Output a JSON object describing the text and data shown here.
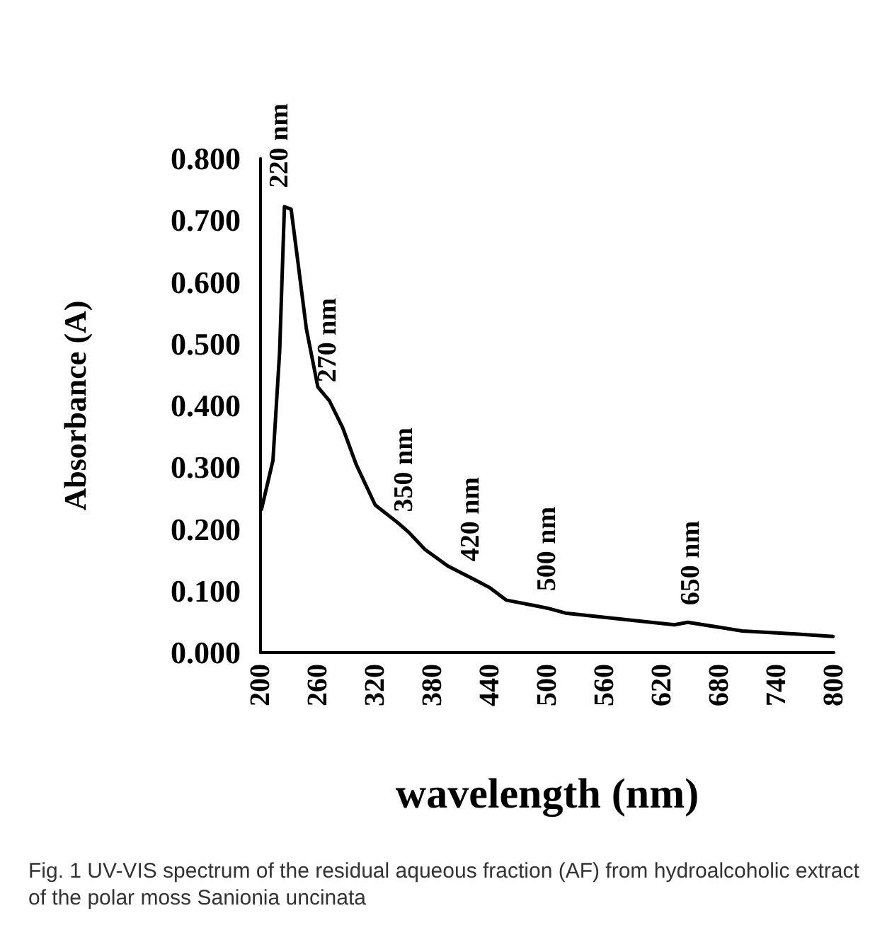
{
  "chart_data": {
    "type": "line",
    "xlabel": "wavelength (nm)",
    "ylabel": "Absorbance (A)",
    "x": [
      201,
      213,
      220,
      225,
      232,
      239,
      248,
      260,
      272,
      286,
      300,
      320,
      343,
      355,
      372,
      396,
      424,
      440,
      457,
      500,
      519,
      560,
      633,
      647,
      704,
      760,
      799
    ],
    "series": [
      {
        "color": "#000000",
        "values": [
          0.232,
          0.311,
          0.487,
          0.722,
          0.718,
          0.634,
          0.524,
          0.43,
          0.408,
          0.364,
          0.305,
          0.239,
          0.211,
          0.195,
          0.167,
          0.14,
          0.118,
          0.105,
          0.085,
          0.072,
          0.064,
          0.057,
          0.045,
          0.049,
          0.035,
          0.03,
          0.026
        ]
      }
    ],
    "xlim": [
      200,
      800
    ],
    "xticks": [
      200,
      260,
      320,
      380,
      440,
      500,
      560,
      620,
      680,
      740,
      800
    ],
    "ylim": [
      0,
      0.8
    ],
    "yticks": [
      {
        "value": 0,
        "label": "0.000"
      },
      {
        "value": 0.1,
        "label": "0.100"
      },
      {
        "value": 0.2,
        "label": "0.200"
      },
      {
        "value": 0.3,
        "label": "0.300"
      },
      {
        "value": 0.4,
        "label": "0.400"
      },
      {
        "value": 0.5,
        "label": "0.500"
      },
      {
        "value": 0.6,
        "label": "0.600"
      },
      {
        "value": 0.7,
        "label": "0.700"
      },
      {
        "value": 0.8,
        "label": "0.800"
      }
    ],
    "grid": false,
    "marker": "none",
    "line_style": "solid",
    "annotations": [
      {
        "text": "220 nm",
        "x": 220,
        "y": 0.725
      },
      {
        "text": "270 nm",
        "x": 270,
        "y": 0.41
      },
      {
        "text": "350 nm",
        "x": 350,
        "y": 0.2
      },
      {
        "text": "420 nm",
        "x": 420,
        "y": 0.12
      },
      {
        "text": "500 nm",
        "x": 500,
        "y": 0.072
      },
      {
        "text": "650 nm",
        "x": 650,
        "y": 0.049
      },
      "Fig. 1 UV-VIS spectrum of the residual aqueous fraction (AF) from hydroalcoholic extract of the polar moss Sanionia uncinata"
    ]
  }
}
